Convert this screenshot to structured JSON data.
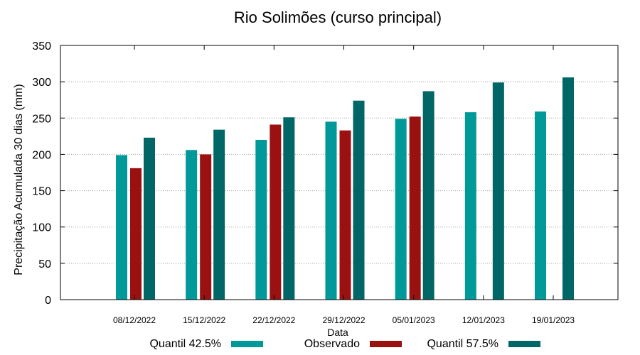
{
  "chart_data": {
    "type": "bar",
    "title": "Rio Solimões (curso principal)",
    "xlabel": "Data",
    "ylabel": "Precipitação Acumulada 30 dias (mm)",
    "ylim": [
      0,
      350
    ],
    "yticks": [
      0,
      50,
      100,
      150,
      200,
      250,
      300,
      350
    ],
    "grid": true,
    "legend_position": "bottom",
    "categories": [
      "08/12/2022",
      "15/12/2022",
      "22/12/2022",
      "29/12/2022",
      "05/01/2023",
      "12/01/2023",
      "19/01/2023"
    ],
    "series": [
      {
        "name": "Quantil 42.5%",
        "color": "#009999",
        "values": [
          199,
          206,
          220,
          245,
          249,
          258,
          259
        ]
      },
      {
        "name": "Observado",
        "color": "#991111",
        "values": [
          181,
          200,
          241,
          233,
          252,
          null,
          null
        ]
      },
      {
        "name": "Quantil 57.5%",
        "color": "#006666",
        "values": [
          223,
          234,
          251,
          274,
          287,
          299,
          306
        ]
      }
    ]
  }
}
